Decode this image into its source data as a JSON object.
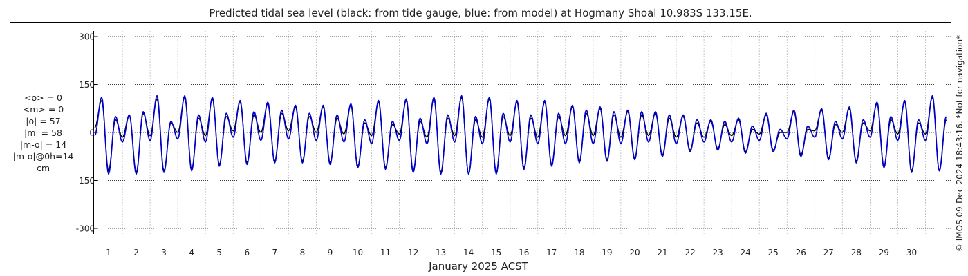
{
  "chart_data": {
    "type": "line",
    "title": "Predicted tidal sea level (black: from tide gauge, blue: from model) at Hogmany Shoal 10.983S 133.15E.",
    "xlabel": "January 2025 ACST",
    "ylabel": "",
    "xlim": [
      "2024-12-31",
      "2025-01-31"
    ],
    "ylim": [
      -300,
      300
    ],
    "x_ticks": [
      "1",
      "2",
      "3",
      "4",
      "5",
      "6",
      "7",
      "8",
      "9",
      "10",
      "11",
      "12",
      "13",
      "14",
      "15",
      "16",
      "17",
      "18",
      "19",
      "20",
      "21",
      "22",
      "23",
      "24",
      "25",
      "26",
      "27",
      "28",
      "29",
      "30"
    ],
    "y_ticks": [
      "300",
      "150",
      "0",
      "-150",
      "-300"
    ],
    "grid": true,
    "series": [
      {
        "name": "from tide gauge",
        "color": "#000000",
        "x_unit": "day of January 2025 (ACST)",
        "x": [
          0,
          0.25,
          0.5,
          0.75,
          1,
          1.25,
          1.5,
          1.75,
          2,
          2.25,
          2.5,
          2.75,
          3,
          3.25,
          3.5,
          3.75,
          4,
          4.25,
          4.5,
          4.75,
          5,
          5.25,
          5.5,
          5.75,
          6,
          6.25,
          6.5,
          6.75,
          7,
          7.25,
          7.5,
          7.75,
          8,
          8.25,
          8.5,
          8.75,
          9,
          9.25,
          9.5,
          9.75,
          10,
          10.25,
          10.5,
          10.75,
          11,
          11.25,
          11.5,
          11.75,
          12,
          12.25,
          12.5,
          12.75,
          13,
          13.25,
          13.5,
          13.75,
          14,
          14.25,
          14.5,
          14.75,
          15,
          15.25,
          15.5,
          15.75,
          16,
          16.25,
          16.5,
          16.75,
          17,
          17.25,
          17.5,
          17.75,
          18,
          18.25,
          18.5,
          18.75,
          19,
          19.25,
          19.5,
          19.75,
          20,
          20.25,
          20.5,
          20.75,
          21,
          21.25,
          21.5,
          21.75,
          22,
          22.25,
          22.5,
          22.75,
          23,
          23.25,
          23.5,
          23.75,
          24,
          24.25,
          24.5,
          24.75,
          25,
          25.25,
          25.5,
          25.75,
          26,
          26.25,
          26.5,
          26.75,
          27,
          27.25,
          27.5,
          27.75,
          28,
          28.25,
          28.5,
          28.75,
          29,
          29.25,
          29.5,
          29.75,
          30,
          30.25,
          30.5,
          30.75
        ],
        "y": [
          15,
          100,
          -120,
          40,
          -15,
          55,
          -125,
          60,
          -10,
          105,
          -120,
          30,
          0,
          110,
          -115,
          45,
          -10,
          105,
          -100,
          50,
          5,
          95,
          -95,
          55,
          0,
          90,
          -90,
          60,
          5,
          80,
          -90,
          50,
          0,
          80,
          -95,
          45,
          -5,
          85,
          -105,
          30,
          -10,
          95,
          -110,
          25,
          -5,
          100,
          -120,
          35,
          -15,
          105,
          -125,
          45,
          -10,
          110,
          -130,
          40,
          -15,
          105,
          -125,
          50,
          -10,
          95,
          -110,
          45,
          -15,
          95,
          -100,
          50,
          -10,
          80,
          -90,
          60,
          -10,
          75,
          -85,
          55,
          -15,
          65,
          -80,
          55,
          -10,
          60,
          -70,
          45,
          -15,
          50,
          -55,
          30,
          -15,
          35,
          -50,
          25,
          -10,
          40,
          -60,
          10,
          -5,
          55,
          -55,
          0,
          0,
          65,
          -70,
          10,
          5,
          70,
          -80,
          25,
          0,
          75,
          -90,
          30,
          5,
          90,
          -105,
          40,
          -5,
          95,
          -120,
          30,
          -5,
          110,
          -120,
          40
        ],
        "note": "values in cm; extrema (high and low water) approx. every 0.25 day, read from the plot"
      },
      {
        "name": "from model",
        "color": "#0000cc",
        "x_unit": "day of January 2025 (ACST)",
        "x": [
          0,
          0.25,
          0.5,
          0.75,
          1,
          1.25,
          1.5,
          1.75,
          2,
          2.25,
          2.5,
          2.75,
          3,
          3.25,
          3.5,
          3.75,
          4,
          4.25,
          4.5,
          4.75,
          5,
          5.25,
          5.5,
          5.75,
          6,
          6.25,
          6.5,
          6.75,
          7,
          7.25,
          7.5,
          7.75,
          8,
          8.25,
          8.5,
          8.75,
          9,
          9.25,
          9.5,
          9.75,
          10,
          10.25,
          10.5,
          10.75,
          11,
          11.25,
          11.5,
          11.75,
          12,
          12.25,
          12.5,
          12.75,
          13,
          13.25,
          13.5,
          13.75,
          14,
          14.25,
          14.5,
          14.75,
          15,
          15.25,
          15.5,
          15.75,
          16,
          16.25,
          16.5,
          16.75,
          17,
          17.25,
          17.5,
          17.75,
          18,
          18.25,
          18.5,
          18.75,
          19,
          19.25,
          19.5,
          19.75,
          20,
          20.25,
          20.5,
          20.75,
          21,
          21.25,
          21.5,
          21.75,
          22,
          22.25,
          22.5,
          22.75,
          23,
          23.25,
          23.5,
          23.75,
          24,
          24.25,
          24.5,
          24.75,
          25,
          25.25,
          25.5,
          25.75,
          26,
          26.25,
          26.5,
          26.75,
          27,
          27.25,
          27.5,
          27.75,
          28,
          28.25,
          28.5,
          28.75,
          29,
          29.25,
          29.5,
          29.75,
          30,
          30.25,
          30.5,
          30.75
        ],
        "y": [
          -10,
          110,
          -130,
          50,
          -30,
          55,
          -130,
          65,
          -25,
          115,
          -125,
          35,
          -20,
          115,
          -120,
          55,
          -30,
          110,
          -105,
          60,
          -15,
          100,
          -100,
          65,
          -25,
          95,
          -95,
          70,
          -20,
          85,
          -95,
          60,
          -25,
          85,
          -100,
          55,
          -30,
          90,
          -110,
          40,
          -35,
          100,
          -115,
          35,
          -25,
          105,
          -125,
          45,
          -35,
          110,
          -130,
          55,
          -30,
          115,
          -130,
          50,
          -35,
          110,
          -130,
          60,
          -30,
          100,
          -115,
          55,
          -35,
          100,
          -105,
          60,
          -35,
          85,
          -95,
          70,
          -35,
          80,
          -90,
          65,
          -35,
          70,
          -85,
          65,
          -30,
          65,
          -75,
          55,
          -35,
          55,
          -60,
          40,
          -30,
          40,
          -55,
          35,
          -30,
          45,
          -65,
          20,
          -25,
          60,
          -60,
          10,
          -20,
          70,
          -75,
          20,
          -15,
          75,
          -85,
          35,
          -20,
          80,
          -95,
          40,
          -15,
          95,
          -110,
          50,
          -25,
          100,
          -125,
          40,
          -25,
          115,
          -120,
          50
        ],
        "note": "values in cm; extrema (high and low water) approx. every 0.25 day, read from the plot"
      }
    ]
  },
  "stats": {
    "mean_obs": "<o> = 0",
    "mean_model": "<m> = 0",
    "abs_obs": "|o| = 57",
    "abs_model": "|m| = 58",
    "abs_diff": "|m-o| = 14",
    "abs_diff_0h": "|m-o|@0h=14",
    "unit": "cm"
  },
  "credit": "© IMOS 09-Dec-2024 18:43:16. *Not for navigation*"
}
